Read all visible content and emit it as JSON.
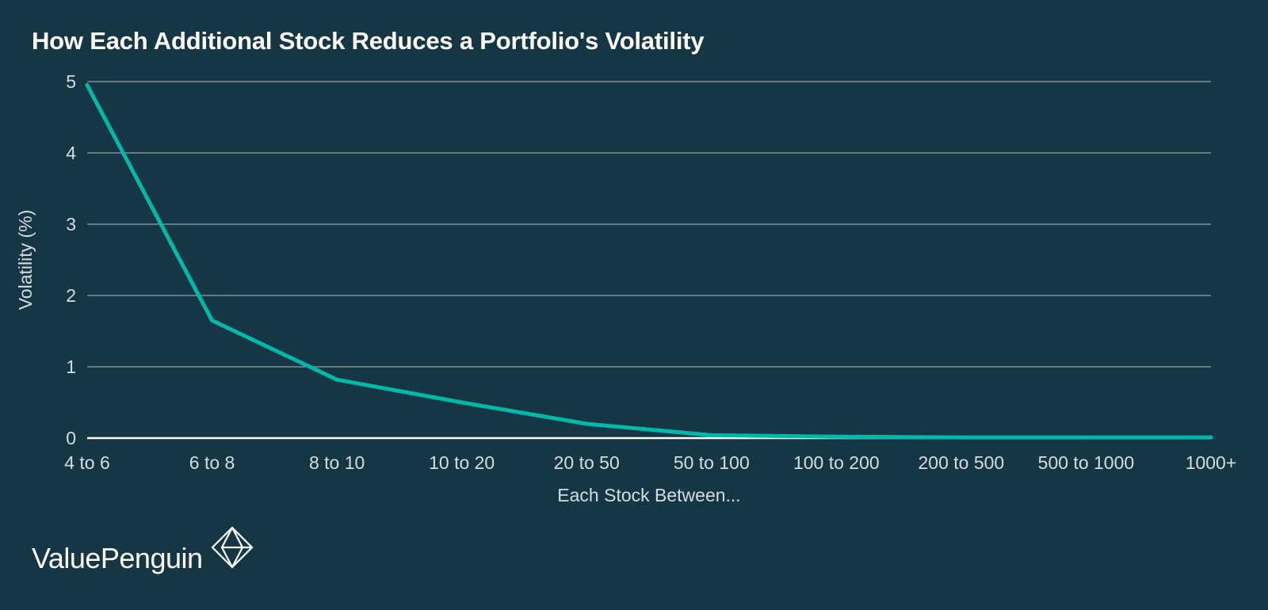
{
  "title": "How Each Additional Stock Reduces a Portfolio's Volatility",
  "brand": {
    "name": "ValuePenguin",
    "logo_icon": "valuepenguin-diamond-icon"
  },
  "colors": {
    "background": "#153644",
    "line": "#00b9a7",
    "grid": "#8fa3ab",
    "text": "#d5dde1"
  },
  "chart_data": {
    "type": "line",
    "title": "How Each Additional Stock Reduces a Portfolio's Volatility",
    "xlabel": "Each Stock Between...",
    "ylabel": "Volatility (%)",
    "ylim": [
      0,
      5
    ],
    "yticks": [
      0,
      1,
      2,
      3,
      4,
      5
    ],
    "grid": true,
    "categories": [
      "4 to 6",
      "6 to 8",
      "8 to 10",
      "10 to 20",
      "20 to 50",
      "50 to 100",
      "100 to 200",
      "200 to 500",
      "500 to 1000",
      "1000+"
    ],
    "series": [
      {
        "values": [
          4.95,
          1.65,
          0.82,
          0.5,
          0.2,
          0.04,
          0.02,
          0.01,
          0.01,
          0.01
        ]
      }
    ]
  }
}
